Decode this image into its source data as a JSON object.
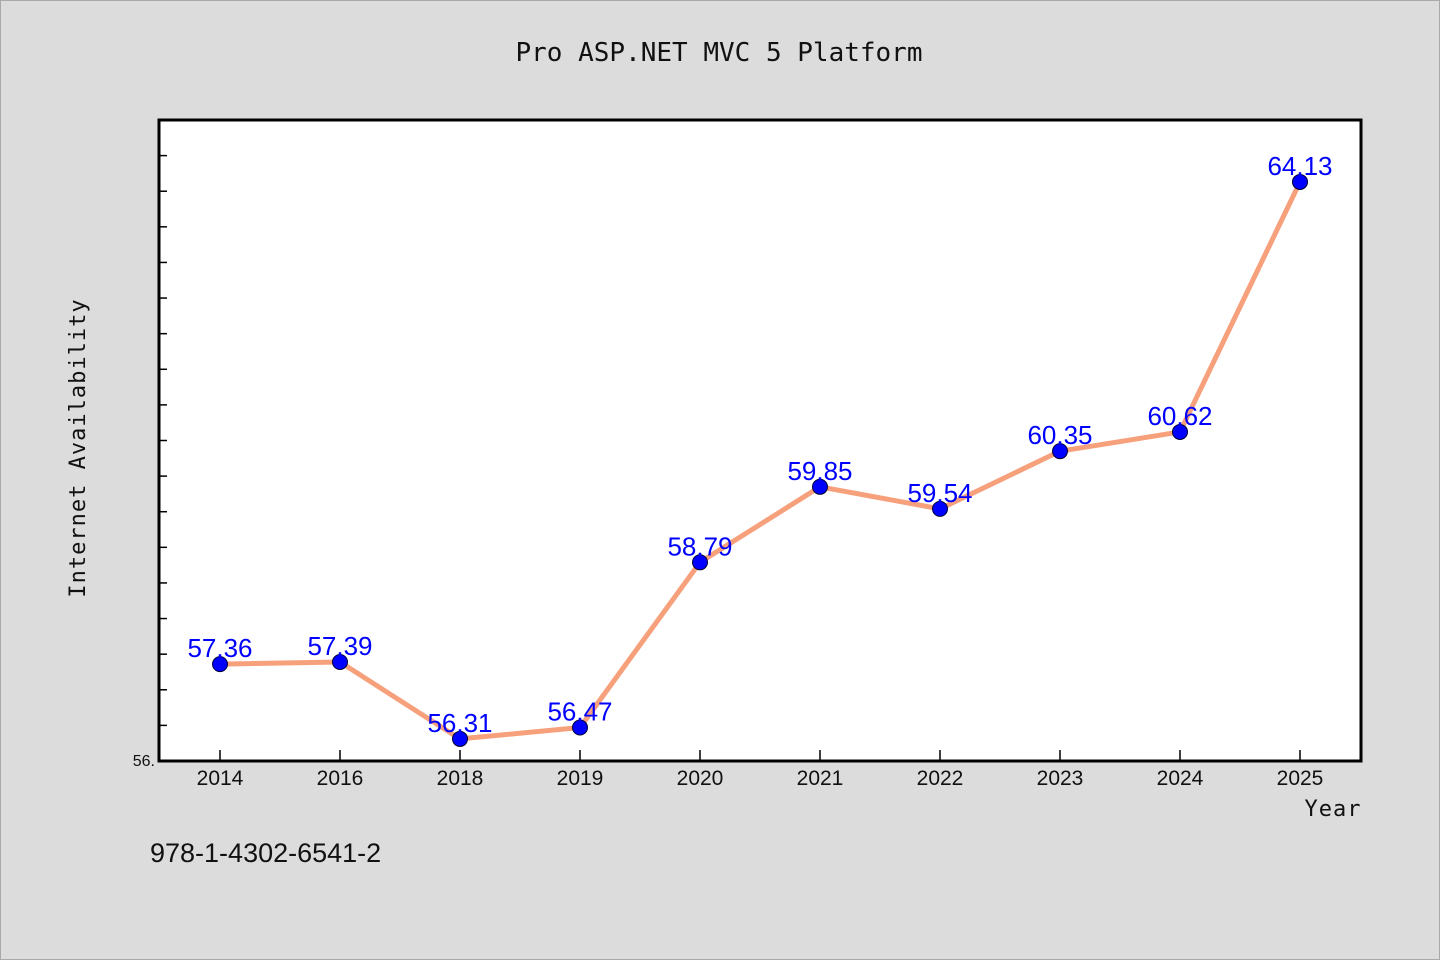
{
  "chart_data": {
    "type": "line",
    "title": "Pro ASP.NET MVC 5 Platform",
    "xlabel": "Year",
    "ylabel": "Internet Availability",
    "categories": [
      "2014",
      "2016",
      "2018",
      "2019",
      "2020",
      "2021",
      "2022",
      "2023",
      "2024",
      "2025"
    ],
    "series": [
      {
        "values": [
          57.36,
          57.39,
          56.31,
          56.47,
          58.79,
          59.85,
          59.54,
          60.35,
          60.62,
          64.13
        ],
        "labels": [
          "57.36",
          "57.39",
          "56.31",
          "56.47",
          "58.79",
          "59.85",
          "59.54",
          "60.35",
          "60.62",
          "64.13"
        ]
      }
    ],
    "ylim": [
      56.0,
      65.0
    ],
    "y_tick_labels": [
      "56."
    ],
    "grid": false,
    "legend": "none",
    "colors": {
      "line": "#f7a07c",
      "marker": "#0000ff",
      "data_label": "#0000ff",
      "plot_background": "#ffffff",
      "figure_background": "#dcdcdc"
    }
  },
  "footnote": "978-1-4302-6541-2"
}
